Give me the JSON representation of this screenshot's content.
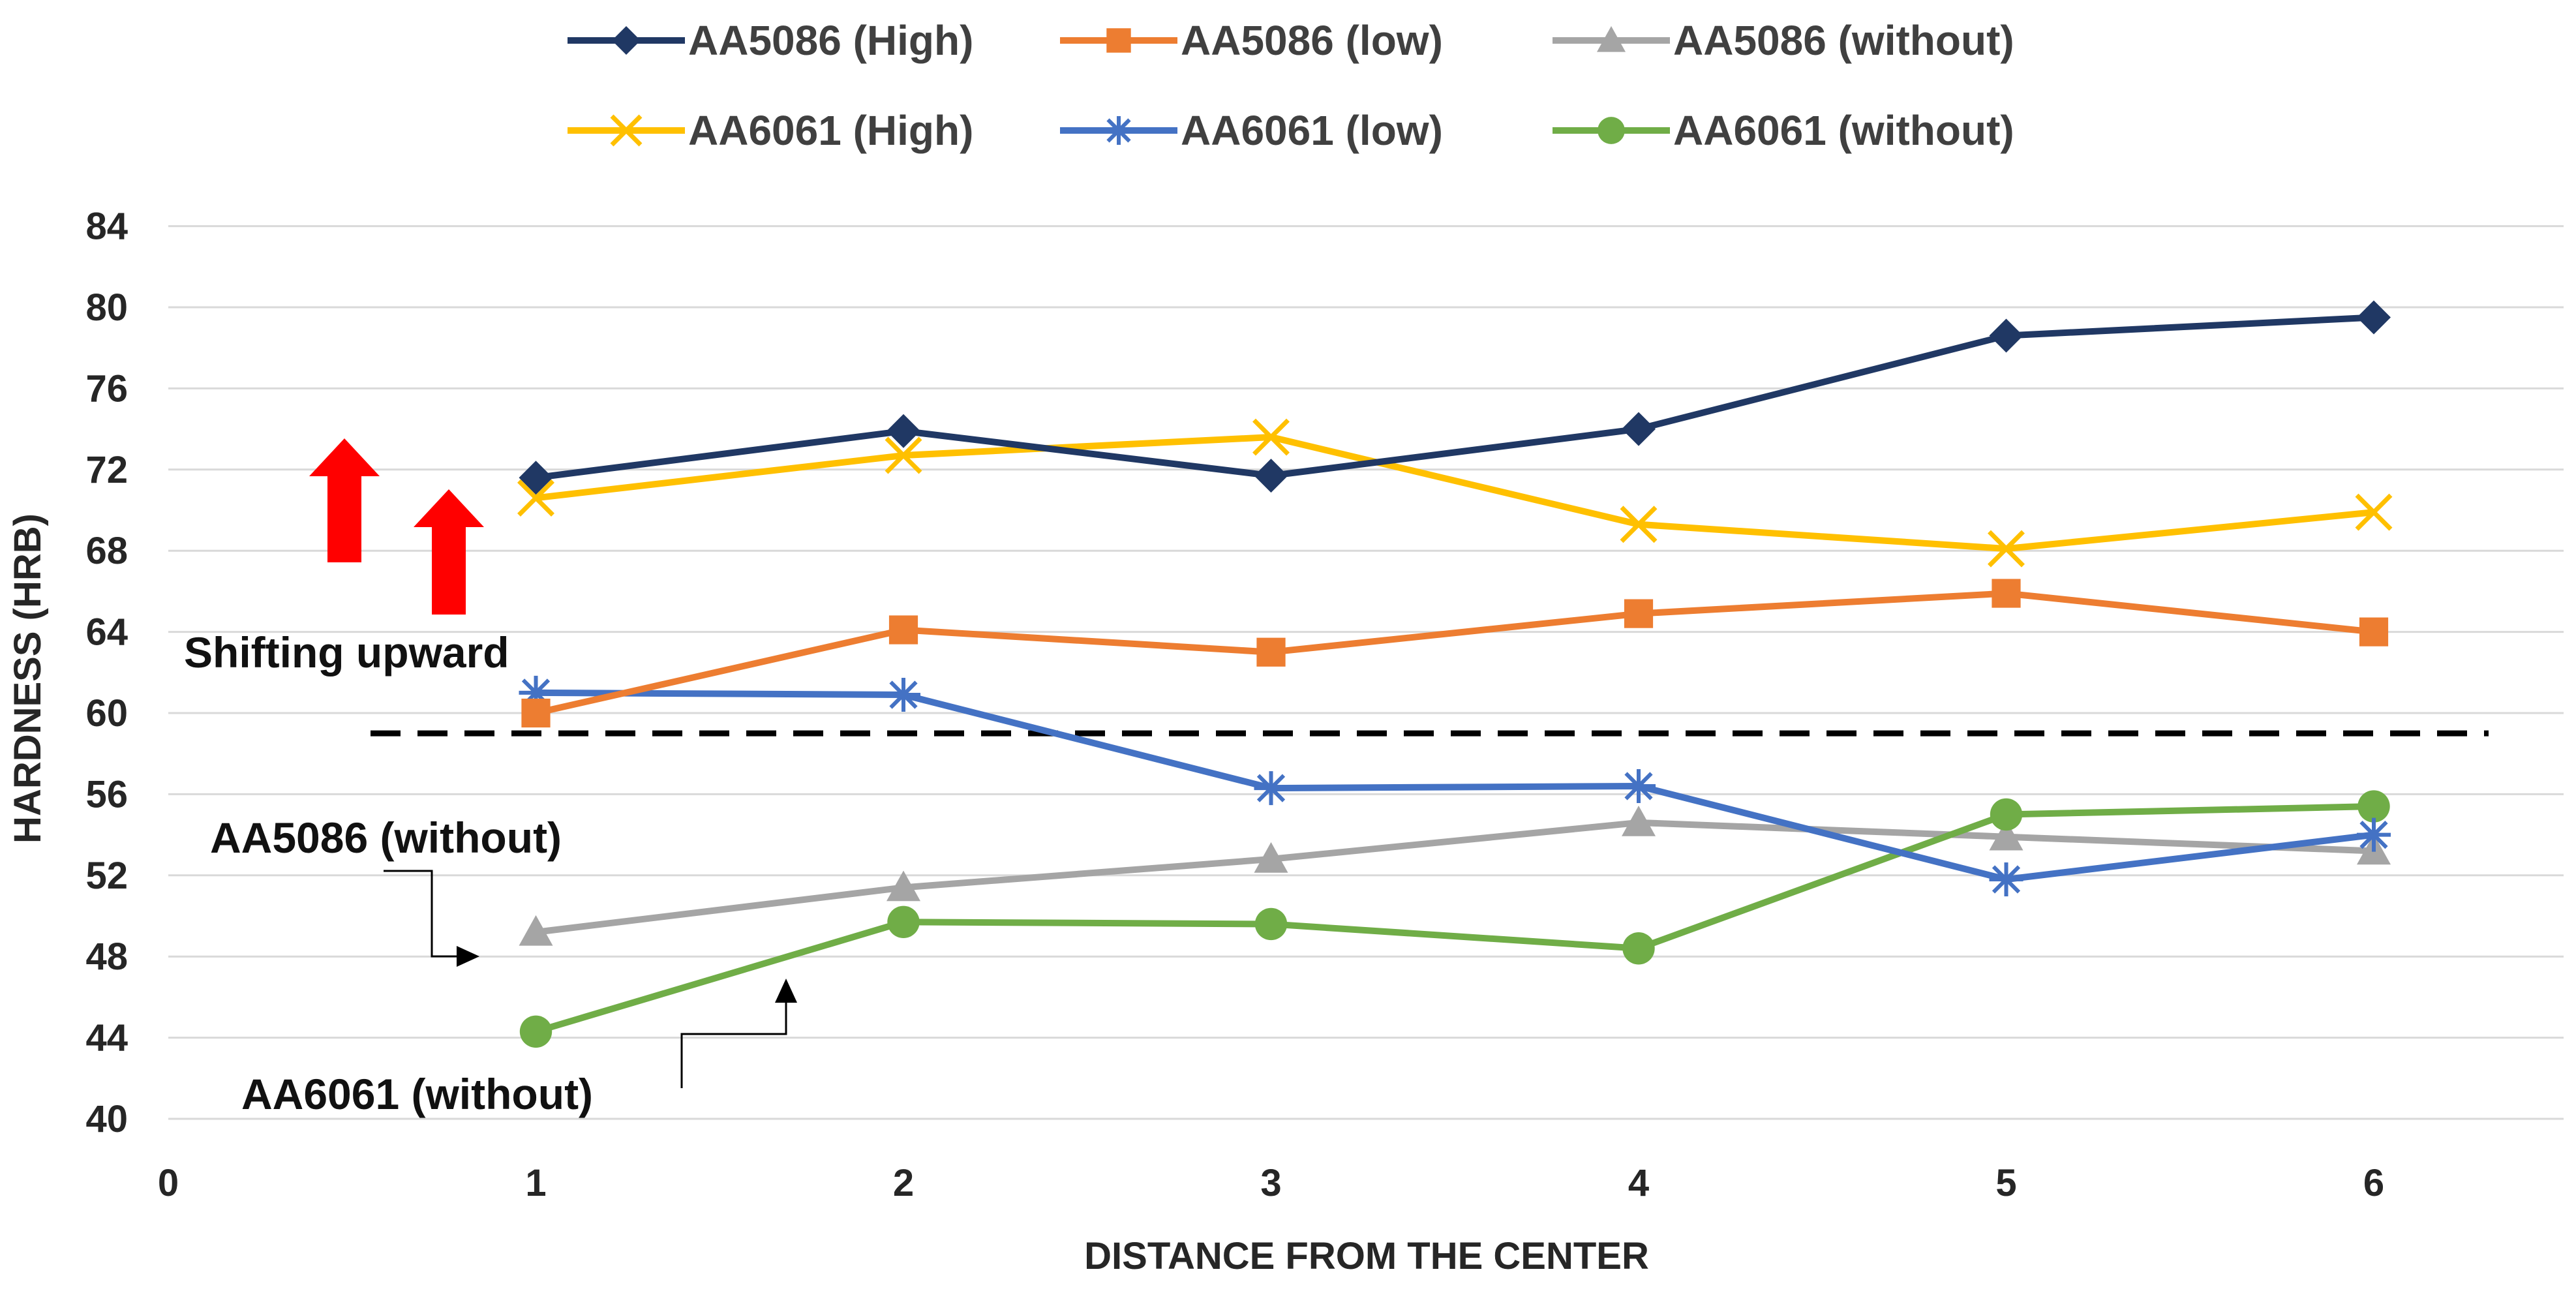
{
  "chart_data": {
    "type": "line",
    "title": "",
    "xlabel": "DISTANCE FROM THE CENTER",
    "ylabel": "HARDNESS  (HRB)",
    "xlim": [
      0,
      6.5
    ],
    "ylim": [
      40,
      84
    ],
    "x_ticks": [
      0,
      1,
      2,
      3,
      4,
      5,
      6
    ],
    "y_ticks": [
      40,
      44,
      48,
      52,
      56,
      60,
      64,
      68,
      72,
      76,
      80,
      84
    ],
    "grid": "horizontal",
    "legend_position": "top",
    "x": [
      1,
      2,
      3,
      4,
      5,
      6
    ],
    "series": [
      {
        "name": "AA5086 (High)",
        "color": "#203864",
        "marker": "diamond",
        "values": [
          71.6,
          73.9,
          71.7,
          74.0,
          78.6,
          79.5
        ]
      },
      {
        "name": "AA5086 (low)",
        "color": "#ED7D31",
        "marker": "square",
        "values": [
          60.0,
          64.1,
          63.0,
          64.9,
          65.9,
          64.0
        ]
      },
      {
        "name": "AA5086 (without)",
        "color": "#A5A5A5",
        "marker": "triangle",
        "values": [
          49.2,
          51.4,
          52.8,
          54.6,
          53.9,
          53.2
        ]
      },
      {
        "name": "AA6061 (High)",
        "color": "#FFC000",
        "marker": "x",
        "values": [
          70.6,
          72.7,
          73.6,
          69.3,
          68.1,
          69.9
        ]
      },
      {
        "name": "AA6061 (low)",
        "color": "#4472C4",
        "marker": "star",
        "values": [
          61.0,
          60.9,
          56.3,
          56.4,
          51.8,
          54.0
        ]
      },
      {
        "name": "AA6061 (without)",
        "color": "#70AD47",
        "marker": "circle",
        "values": [
          44.3,
          49.7,
          49.6,
          48.4,
          55.0,
          55.4
        ]
      }
    ],
    "reference_line": {
      "value": 59.0,
      "style": "dashed",
      "color": "#000000"
    },
    "annotations": {
      "shift_label": "Shifting upward",
      "aa5086_label": "AA5086 (without)",
      "aa6061_label": "AA6061 (without)",
      "arrow_color": "#FF0000"
    }
  }
}
